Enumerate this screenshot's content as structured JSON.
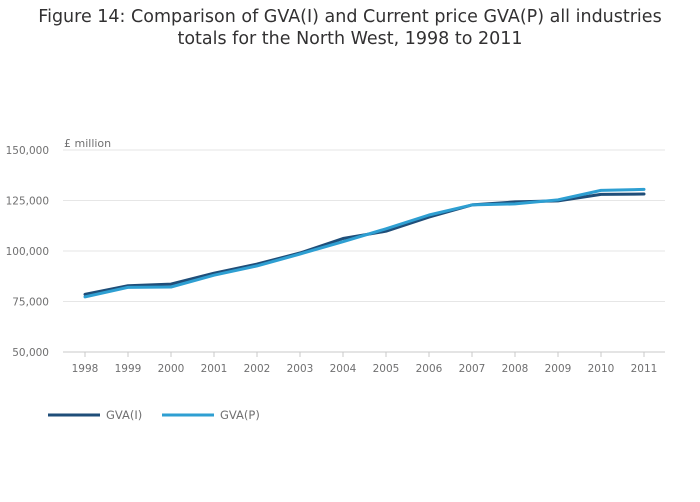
{
  "title_line1": "Figure 14: Comparison of GVA(I) and Current price GVA(P) all industries",
  "title_line2": "totals for the North West, 1998 to 2011",
  "chart_data": {
    "type": "line",
    "title": "Figure 14: Comparison of GVA(I) and Current price GVA(P) all industries totals for the North West, 1998 to 2011",
    "ylabel": "£ million",
    "xlabel": "",
    "x": [
      1998,
      1999,
      2000,
      2001,
      2002,
      2003,
      2004,
      2005,
      2006,
      2007,
      2008,
      2009,
      2010,
      2011
    ],
    "ylim": [
      50000,
      150000
    ],
    "yticks": [
      50000,
      75000,
      100000,
      125000,
      150000
    ],
    "ytick_labels": [
      "50,000",
      "75,000",
      "100,000",
      "125,000",
      "150,000"
    ],
    "grid": true,
    "legend_position": "bottom-left",
    "series": [
      {
        "name": "GVA(I)",
        "color": "#1f4e79",
        "values": [
          78500,
          82800,
          83600,
          89000,
          93500,
          99000,
          106200,
          109800,
          116800,
          122800,
          124300,
          124800,
          128000,
          128200
        ]
      },
      {
        "name": "GVA(P)",
        "color": "#2e9fd2",
        "values": [
          77300,
          82000,
          82200,
          88000,
          92600,
          98500,
          104600,
          111000,
          117800,
          122800,
          123300,
          125300,
          130000,
          130500
        ]
      }
    ]
  }
}
